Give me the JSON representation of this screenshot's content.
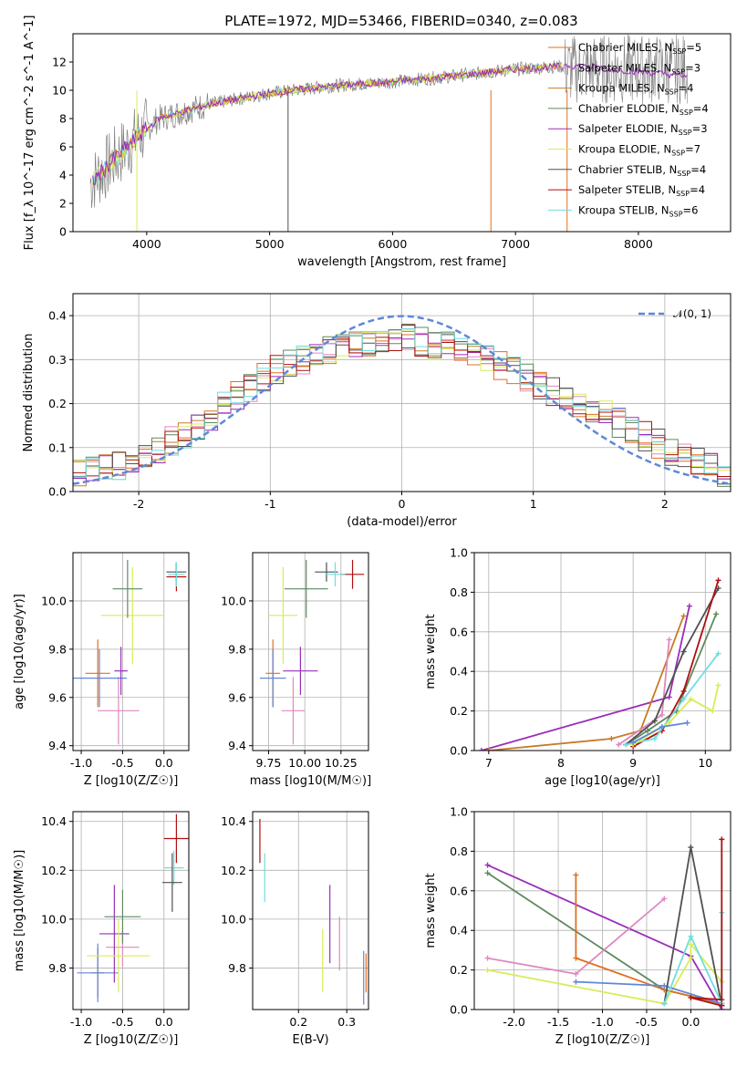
{
  "title": "PLATE=1972, MJD=53466, FIBERID=0340, z=0.083",
  "colors": {
    "gray": "#808080",
    "orange": "#e07020",
    "teal": "#70dede",
    "yellowgreen": "#d8ec5a",
    "seagreen": "#5e8a5e",
    "purple": "#9a2eb8",
    "pink": "#e088c0",
    "dimgray": "#505050",
    "darkred": "#b01010",
    "blue": "#6088d8",
    "brown": "#c87a28"
  },
  "legend_items": [
    {
      "text": "Chabrier MILES, N_SSP=5",
      "color": "#e07020"
    },
    {
      "text": "Salpeter MILES, N_SSP=3",
      "color": "#e088c0"
    },
    {
      "text": "Kroupa MILES, N_SSP=4",
      "color": "#c87a28"
    },
    {
      "text": "Chabrier ELODIE, N_SSP=4",
      "color": "#5e8a5e"
    },
    {
      "text": "Salpeter ELODIE, N_SSP=3",
      "color": "#9a2eb8"
    },
    {
      "text": "Kroupa ELODIE, N_SSP=7",
      "color": "#d8ec5a"
    },
    {
      "text": "Chabrier STELIB, N_SSP=4",
      "color": "#505050"
    },
    {
      "text": "Salpeter STELIB, N_SSP=4",
      "color": "#b01010"
    },
    {
      "text": "Kroupa STELIB, N_SSP=6",
      "color": "#70dede"
    }
  ],
  "chart_data": [
    {
      "id": "spectrum",
      "type": "line",
      "xlabel": "wavelength [Angstrom, rest frame]",
      "ylabel": "Flux [f_λ 10^-17 erg cm^-2 s^-1 A^-1]",
      "xlim": [
        3400,
        8750
      ],
      "ylim": [
        0,
        14
      ],
      "xticks": [
        4000,
        5000,
        6000,
        7000,
        8000
      ],
      "yticks": [
        0,
        2,
        4,
        6,
        8,
        10,
        12
      ],
      "spectrum_envelope": {
        "wavelength": [
          3550,
          3700,
          3900,
          4100,
          4500,
          5000,
          5500,
          6000,
          6500,
          7000,
          7400
        ],
        "flux": [
          3.5,
          4.8,
          6.5,
          8.0,
          9.0,
          9.8,
          10.3,
          10.6,
          11.0,
          11.5,
          11.7
        ]
      },
      "data_noisy_tail": {
        "wavelength": [
          7400,
          8400
        ],
        "flux_range": [
          9.0,
          14.0
        ]
      }
    },
    {
      "id": "residuals",
      "type": "bar",
      "xlabel": "(data-model)/error",
      "ylabel": "Normed distribution",
      "xlim": [
        -2.5,
        2.5
      ],
      "ylim": [
        0,
        0.45
      ],
      "xticks": [
        -2,
        -1,
        0,
        1,
        2
      ],
      "yticks": [
        0.0,
        0.1,
        0.2,
        0.3,
        0.4
      ],
      "legend": "𝒩(0, 1)",
      "normal_curve": {
        "mu": 0,
        "sigma": 1,
        "color": "#6088d8"
      },
      "histogram_bin_width": 0.1,
      "histogram_envelope": {
        "x": [
          -2.5,
          -2.0,
          -1.5,
          -1.0,
          -0.5,
          0.0,
          0.5,
          1.0,
          1.5,
          2.0,
          2.5
        ],
        "density": [
          0.04,
          0.07,
          0.16,
          0.27,
          0.33,
          0.35,
          0.32,
          0.25,
          0.18,
          0.1,
          0.04
        ]
      }
    },
    {
      "id": "age_vs_Z",
      "type": "scatter",
      "xlabel": "Z [log10(Z/Z☉)]",
      "ylabel": "age  [log10(age/yr)]",
      "xlim": [
        -1.1,
        0.3
      ],
      "ylim": [
        9.38,
        10.2
      ],
      "xticks": [
        -1.0,
        -0.5,
        0.0
      ],
      "yticks": [
        9.4,
        9.6,
        9.8,
        10.0
      ],
      "points": [
        {
          "x": -0.8,
          "y": 9.7,
          "xerr": 0.15,
          "yerr": 0.14,
          "color": "#e07020"
        },
        {
          "x": -0.55,
          "y": 9.545,
          "xerr": 0.25,
          "yerr": 0.14,
          "color": "#e088c0"
        },
        {
          "x": -0.78,
          "y": 9.68,
          "xerr": 0.33,
          "yerr": 0.12,
          "color": "#6088d8"
        },
        {
          "x": -0.52,
          "y": 9.71,
          "xerr": 0.08,
          "yerr": 0.1,
          "color": "#9a2eb8"
        },
        {
          "x": -0.38,
          "y": 9.94,
          "xerr": 0.38,
          "yerr": 0.2,
          "color": "#d8ec5a"
        },
        {
          "x": -0.44,
          "y": 10.05,
          "xerr": 0.18,
          "yerr": 0.12,
          "color": "#5e8a5e"
        },
        {
          "x": 0.15,
          "y": 10.12,
          "xerr": 0.12,
          "yerr": 0.04,
          "color": "#505050"
        },
        {
          "x": 0.15,
          "y": 10.1,
          "xerr": 0.12,
          "yerr": 0.06,
          "color": "#b01010"
        },
        {
          "x": 0.15,
          "y": 10.11,
          "xerr": 0.1,
          "yerr": 0.05,
          "color": "#70dede"
        }
      ]
    },
    {
      "id": "age_vs_mass",
      "type": "scatter",
      "xlabel": "mass [log10(M/M☉)]",
      "ylabel": "",
      "xlim": [
        9.64,
        10.44
      ],
      "ylim": [
        9.38,
        10.2
      ],
      "xticks": [
        9.75,
        10.0,
        10.25
      ],
      "yticks": [
        9.4,
        9.6,
        9.8,
        10.0
      ],
      "points": [
        {
          "x": 9.78,
          "y": 9.7,
          "xerr": 0.05,
          "yerr": 0.14,
          "color": "#e07020"
        },
        {
          "x": 9.92,
          "y": 9.545,
          "xerr": 0.08,
          "yerr": 0.14,
          "color": "#e088c0"
        },
        {
          "x": 9.78,
          "y": 9.68,
          "xerr": 0.09,
          "yerr": 0.12,
          "color": "#6088d8"
        },
        {
          "x": 9.97,
          "y": 9.71,
          "xerr": 0.12,
          "yerr": 0.1,
          "color": "#9a2eb8"
        },
        {
          "x": 9.85,
          "y": 9.94,
          "xerr": 0.1,
          "yerr": 0.2,
          "color": "#d8ec5a"
        },
        {
          "x": 10.01,
          "y": 10.05,
          "xerr": 0.15,
          "yerr": 0.12,
          "color": "#5e8a5e"
        },
        {
          "x": 10.15,
          "y": 10.12,
          "xerr": 0.08,
          "yerr": 0.04,
          "color": "#505050"
        },
        {
          "x": 10.33,
          "y": 10.11,
          "xerr": 0.08,
          "yerr": 0.06,
          "color": "#b01010"
        },
        {
          "x": 10.21,
          "y": 10.11,
          "xerr": 0.07,
          "yerr": 0.05,
          "color": "#70dede"
        }
      ]
    },
    {
      "id": "weight_vs_age",
      "type": "line",
      "xlabel": "age  [log10(age/yr)]",
      "ylabel": "mass weight",
      "xlim": [
        6.8,
        10.35
      ],
      "ylim": [
        0,
        1.0
      ],
      "xticks": [
        7,
        8,
        9,
        10
      ],
      "yticks": [
        0.0,
        0.2,
        0.4,
        0.6,
        0.8,
        1.0
      ],
      "series": [
        {
          "color": "#9a2eb8",
          "x": [
            6.9,
            9.5,
            9.78
          ],
          "y": [
            0.0,
            0.27,
            0.73
          ]
        },
        {
          "color": "#c87a28",
          "x": [
            7.0,
            8.7,
            9.1,
            9.7
          ],
          "y": [
            0.0,
            0.06,
            0.1,
            0.68
          ]
        },
        {
          "color": "#e088c0",
          "x": [
            8.8,
            9.4,
            9.5
          ],
          "y": [
            0.03,
            0.18,
            0.56
          ]
        },
        {
          "color": "#5e8a5e",
          "x": [
            8.9,
            9.2,
            9.6,
            10.15
          ],
          "y": [
            0.03,
            0.1,
            0.2,
            0.69
          ]
        },
        {
          "color": "#505050",
          "x": [
            8.9,
            9.3,
            9.7,
            10.18
          ],
          "y": [
            0.03,
            0.15,
            0.5,
            0.82
          ]
        },
        {
          "color": "#b01010",
          "x": [
            9.0,
            9.4,
            9.7,
            10.18
          ],
          "y": [
            0.02,
            0.1,
            0.3,
            0.86
          ]
        },
        {
          "color": "#70dede",
          "x": [
            8.9,
            9.3,
            9.7,
            10.18
          ],
          "y": [
            0.03,
            0.06,
            0.26,
            0.49
          ]
        },
        {
          "color": "#d8ec5a",
          "x": [
            9.0,
            9.5,
            9.8,
            10.1,
            10.18
          ],
          "y": [
            0.03,
            0.14,
            0.26,
            0.2,
            0.33
          ]
        },
        {
          "color": "#6088d8",
          "x": [
            9.0,
            9.4,
            9.75
          ],
          "y": [
            0.04,
            0.12,
            0.14
          ]
        }
      ]
    },
    {
      "id": "mass_vs_Z",
      "type": "scatter",
      "xlabel": "Z [log10(Z/Z☉)]",
      "ylabel": "mass [log10(M/M☉)]",
      "xlim": [
        -1.1,
        0.3
      ],
      "ylim": [
        9.63,
        10.44
      ],
      "xticks": [
        -1.0,
        -0.5,
        0.0
      ],
      "yticks": [
        9.8,
        10.0,
        10.2,
        10.4
      ],
      "points": [
        {
          "x": -0.8,
          "y": 9.78,
          "xerr": 0.08,
          "yerr": 0.1,
          "color": "#e07020"
        },
        {
          "x": -0.8,
          "y": 9.78,
          "xerr": 0.25,
          "yerr": 0.12,
          "color": "#6088d8"
        },
        {
          "x": -0.5,
          "y": 9.885,
          "xerr": 0.2,
          "yerr": 0.08,
          "color": "#e088c0"
        },
        {
          "x": -0.6,
          "y": 9.94,
          "xerr": 0.18,
          "yerr": 0.2,
          "color": "#9a2eb8"
        },
        {
          "x": -0.55,
          "y": 9.85,
          "xerr": 0.38,
          "yerr": 0.15,
          "color": "#d8ec5a"
        },
        {
          "x": -0.5,
          "y": 10.01,
          "xerr": 0.22,
          "yerr": 0.11,
          "color": "#5e8a5e"
        },
        {
          "x": 0.15,
          "y": 10.33,
          "xerr": 0.15,
          "yerr": 0.1,
          "color": "#b01010"
        },
        {
          "x": 0.12,
          "y": 10.21,
          "xerr": 0.12,
          "yerr": 0.07,
          "color": "#70dede"
        },
        {
          "x": 0.1,
          "y": 10.15,
          "xerr": 0.12,
          "yerr": 0.12,
          "color": "#505050"
        }
      ]
    },
    {
      "id": "mass_vs_ebv",
      "type": "scatter",
      "xlabel": "E(B-V)",
      "ylabel": "",
      "xlim": [
        0.105,
        0.345
      ],
      "ylim": [
        9.63,
        10.44
      ],
      "xticks": [
        0.2,
        0.3
      ],
      "yticks": [
        9.8,
        10.0,
        10.2,
        10.4
      ],
      "points": [
        {
          "x": 0.12,
          "y": 10.32,
          "yerr": 0.09,
          "color": "#b01010"
        },
        {
          "x": 0.13,
          "y": 10.17,
          "yerr": 0.1,
          "color": "#70dede"
        },
        {
          "x": 0.25,
          "y": 9.83,
          "yerr": 0.13,
          "color": "#d8ec5a"
        },
        {
          "x": 0.265,
          "y": 9.98,
          "yerr": 0.16,
          "color": "#9a2eb8"
        },
        {
          "x": 0.285,
          "y": 9.9,
          "yerr": 0.11,
          "color": "#e088c0"
        },
        {
          "x": 0.335,
          "y": 9.76,
          "yerr": 0.11,
          "color": "#6088d8"
        },
        {
          "x": 0.34,
          "y": 9.78,
          "yerr": 0.08,
          "color": "#e07020"
        }
      ]
    },
    {
      "id": "weight_vs_Z",
      "type": "line",
      "xlabel": "Z [log10(Z/Z☉)]",
      "ylabel": "mass weight",
      "xlim": [
        -2.45,
        0.45
      ],
      "ylim": [
        0,
        1.0
      ],
      "xticks": [
        -2.0,
        -1.5,
        -1.0,
        -0.5,
        0.0
      ],
      "yticks": [
        0.0,
        0.2,
        0.4,
        0.6,
        0.8,
        1.0
      ],
      "series": [
        {
          "color": "#9a2eb8",
          "x": [
            -2.3,
            0.0,
            0.35
          ],
          "y": [
            0.73,
            0.27,
            0.0
          ]
        },
        {
          "color": "#5e8a5e",
          "x": [
            -2.3,
            -0.3,
            0.35
          ],
          "y": [
            0.69,
            0.1,
            0.03
          ]
        },
        {
          "color": "#e088c0",
          "x": [
            -2.3,
            -1.3,
            -0.3
          ],
          "y": [
            0.26,
            0.18,
            0.56
          ]
        },
        {
          "color": "#d8ec5a",
          "x": [
            -2.3,
            -0.3,
            0.0,
            0.0,
            0.35,
            0.35
          ],
          "y": [
            0.2,
            0.03,
            0.26,
            0.33,
            0.14,
            0.2
          ]
        },
        {
          "color": "#e07020",
          "x": [
            -1.3,
            -1.3,
            -0.3,
            0.35
          ],
          "y": [
            0.68,
            0.26,
            0.1,
            0.03
          ]
        },
        {
          "color": "#6088d8",
          "x": [
            -1.3,
            -0.3,
            0.35
          ],
          "y": [
            0.14,
            0.12,
            0.03
          ]
        },
        {
          "color": "#505050",
          "x": [
            -0.3,
            0.0,
            0.35
          ],
          "y": [
            0.03,
            0.82,
            0.02
          ]
        },
        {
          "color": "#70dede",
          "x": [
            -0.3,
            0.0,
            0.35,
            0.35
          ],
          "y": [
            0.03,
            0.37,
            0.03,
            0.49
          ]
        },
        {
          "color": "#b01010",
          "x": [
            0.35,
            0.35,
            0.0,
            0.35
          ],
          "y": [
            0.86,
            0.05,
            0.06,
            0.02
          ]
        }
      ]
    }
  ]
}
